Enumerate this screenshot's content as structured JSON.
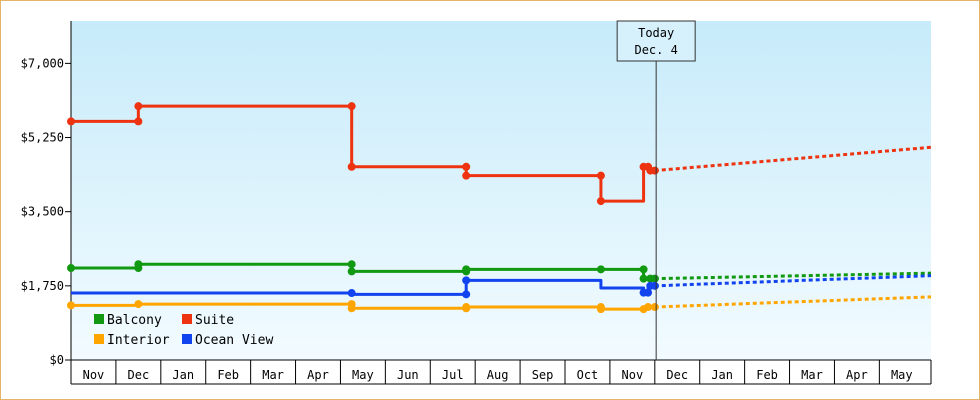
{
  "chart_data": {
    "type": "line",
    "title": "",
    "xlabel": "",
    "ylabel": "",
    "ylim": [
      0,
      8000
    ],
    "y_ticks": [
      {
        "value": 0,
        "label": "$0"
      },
      {
        "value": 1750,
        "label": "$1,750"
      },
      {
        "value": 3500,
        "label": "$3,500"
      },
      {
        "value": 5250,
        "label": "$5,250"
      },
      {
        "value": 7000,
        "label": "$7,000"
      }
    ],
    "x_start_month": 0,
    "x_end_month": 19.15,
    "months": [
      "Nov",
      "Dec",
      "Jan",
      "Feb",
      "Mar",
      "Apr",
      "May",
      "Jun",
      "Jul",
      "Aug",
      "Sep",
      "Oct",
      "Nov",
      "Dec",
      "Jan",
      "Feb",
      "Mar",
      "Apr",
      "May"
    ],
    "today": {
      "line1": "Today",
      "line2": "Dec. 4",
      "x": 13.03
    },
    "grid": false,
    "legend": "bottom-left",
    "series": [
      {
        "name": "Balcony",
        "color": "#119911",
        "points": [
          [
            0,
            2170
          ],
          [
            1.5,
            2170
          ],
          [
            1.5,
            2260
          ],
          [
            6.25,
            2260
          ],
          [
            6.25,
            2090
          ],
          [
            8.8,
            2090
          ],
          [
            8.8,
            2140
          ],
          [
            11.8,
            2140
          ],
          [
            12.75,
            2140
          ],
          [
            12.75,
            1920
          ],
          [
            12.9,
            1920
          ],
          [
            13.0,
            1920
          ]
        ],
        "markers": [
          [
            0,
            2170
          ],
          [
            1.5,
            2170
          ],
          [
            1.5,
            2260
          ],
          [
            6.25,
            2260
          ],
          [
            6.25,
            2090
          ],
          [
            8.8,
            2090
          ],
          [
            8.8,
            2140
          ],
          [
            11.8,
            2140
          ],
          [
            12.75,
            2140
          ],
          [
            12.75,
            1920
          ],
          [
            12.9,
            1920
          ],
          [
            13.0,
            1920
          ]
        ],
        "forecast": [
          [
            13.0,
            1920
          ],
          [
            19.15,
            2050
          ]
        ]
      },
      {
        "name": "Suite",
        "color": "#ee3311",
        "points": [
          [
            0,
            5630
          ],
          [
            1.5,
            5630
          ],
          [
            1.5,
            5990
          ],
          [
            6.25,
            5990
          ],
          [
            6.25,
            4560
          ],
          [
            8.8,
            4560
          ],
          [
            8.8,
            4350
          ],
          [
            11.8,
            4350
          ],
          [
            11.8,
            3750
          ],
          [
            12.75,
            3750
          ],
          [
            12.75,
            4560
          ],
          [
            12.85,
            4560
          ],
          [
            12.85,
            4470
          ],
          [
            13.0,
            4470
          ]
        ],
        "markers": [
          [
            0,
            5630
          ],
          [
            1.5,
            5630
          ],
          [
            1.5,
            5990
          ],
          [
            6.25,
            5990
          ],
          [
            6.25,
            4560
          ],
          [
            8.8,
            4560
          ],
          [
            8.8,
            4350
          ],
          [
            11.8,
            4350
          ],
          [
            11.8,
            3750
          ],
          [
            12.75,
            4560
          ],
          [
            12.85,
            4560
          ],
          [
            12.9,
            4470
          ],
          [
            13.0,
            4470
          ]
        ],
        "forecast": [
          [
            13.0,
            4470
          ],
          [
            19.15,
            5020
          ]
        ]
      },
      {
        "name": "Interior",
        "color": "#ffa500",
        "points": [
          [
            0,
            1290
          ],
          [
            1.5,
            1290
          ],
          [
            1.5,
            1320
          ],
          [
            6.25,
            1320
          ],
          [
            6.25,
            1220
          ],
          [
            8.8,
            1220
          ],
          [
            8.8,
            1250
          ],
          [
            11.8,
            1250
          ],
          [
            11.8,
            1200
          ],
          [
            12.75,
            1200
          ],
          [
            12.75,
            1250
          ],
          [
            13.0,
            1250
          ]
        ],
        "markers": [
          [
            0,
            1290
          ],
          [
            1.5,
            1320
          ],
          [
            6.25,
            1320
          ],
          [
            6.25,
            1220
          ],
          [
            8.8,
            1220
          ],
          [
            8.8,
            1250
          ],
          [
            11.8,
            1250
          ],
          [
            11.8,
            1200
          ],
          [
            12.75,
            1200
          ],
          [
            12.85,
            1250
          ],
          [
            13.0,
            1250
          ]
        ],
        "forecast": [
          [
            13.0,
            1250
          ],
          [
            19.15,
            1490
          ]
        ]
      },
      {
        "name": "Ocean View",
        "color": "#1144ee",
        "points": [
          [
            0,
            1580
          ],
          [
            6.25,
            1580
          ],
          [
            6.25,
            1550
          ],
          [
            8.8,
            1550
          ],
          [
            8.8,
            1880
          ],
          [
            11.8,
            1880
          ],
          [
            11.8,
            1700
          ],
          [
            12.75,
            1700
          ],
          [
            12.75,
            1590
          ],
          [
            12.85,
            1590
          ],
          [
            12.85,
            1750
          ],
          [
            13.0,
            1750
          ]
        ],
        "markers": [
          [
            6.25,
            1580
          ],
          [
            8.8,
            1550
          ],
          [
            8.8,
            1880
          ],
          [
            12.75,
            1590
          ],
          [
            12.85,
            1590
          ],
          [
            12.9,
            1750
          ],
          [
            13.0,
            1750
          ]
        ],
        "forecast": [
          [
            13.0,
            1750
          ],
          [
            19.15,
            1990
          ]
        ]
      }
    ]
  }
}
